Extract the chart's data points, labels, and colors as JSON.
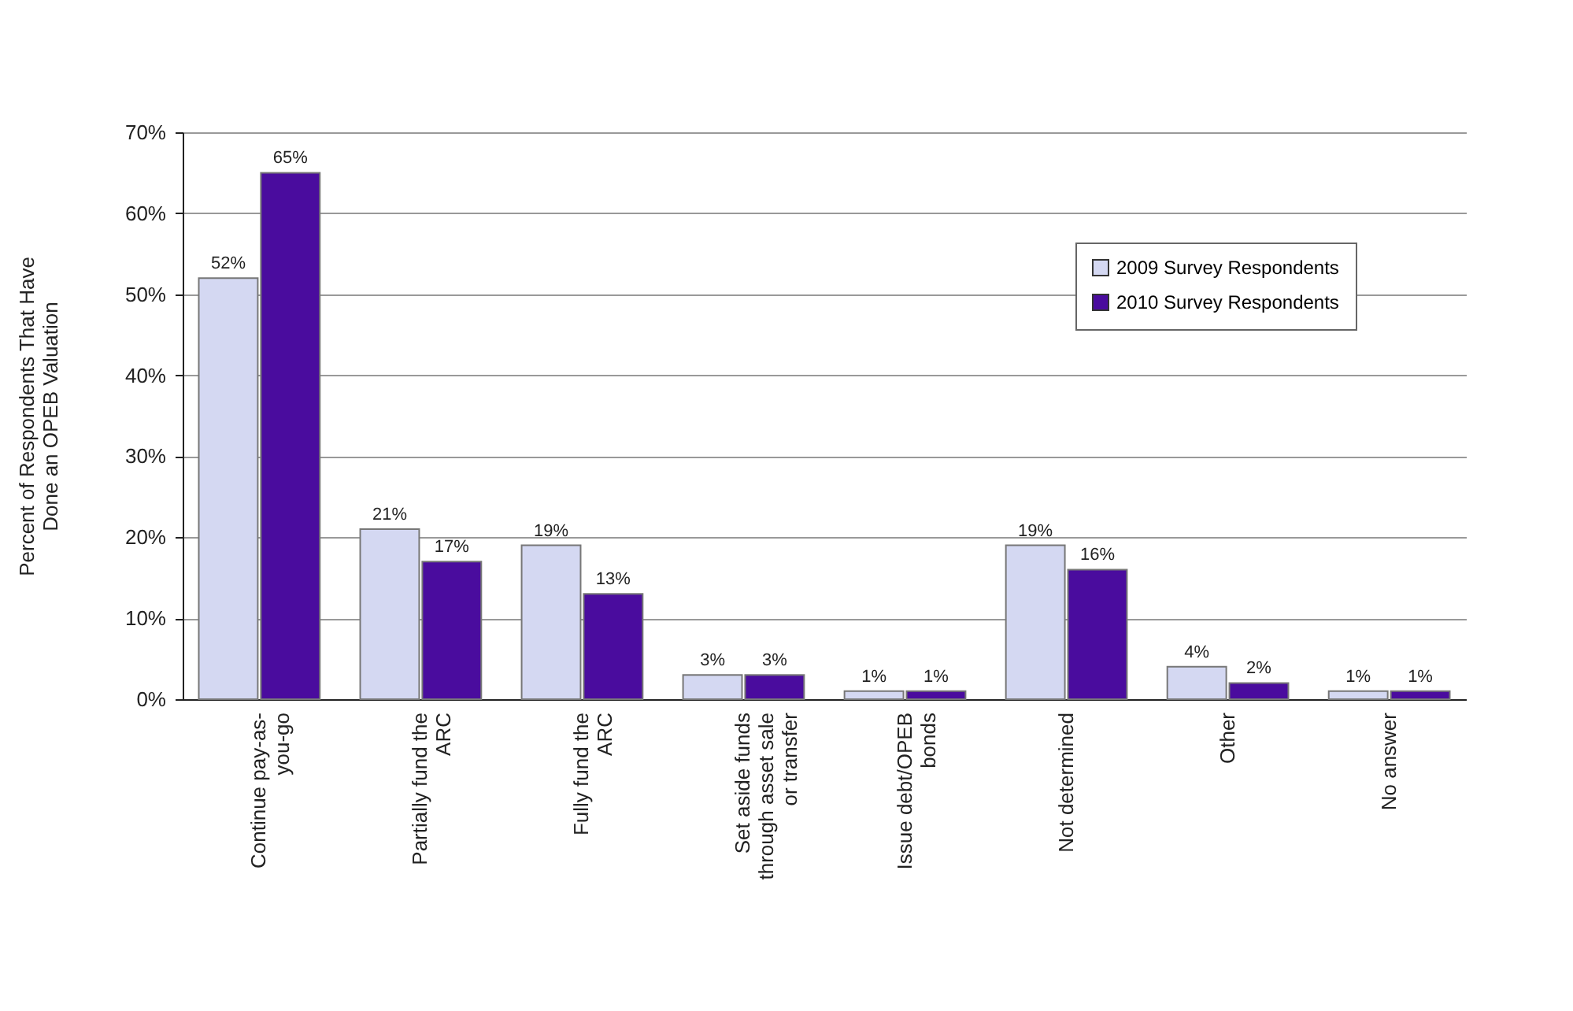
{
  "chart_data": {
    "type": "bar",
    "ylabel": "Percent of Respondents That Have\nDone an OPEB Valuation",
    "categories": [
      "Continue pay-as-\nyou-go",
      "Partially fund the\nARC",
      "Fully fund the\nARC",
      "Set aside funds\nthrough asset sale\nor transfer",
      "Issue debt/OPEB\nbonds",
      "Not determined",
      "Other",
      "No answer"
    ],
    "series": [
      {
        "name": "2009 Survey Respondents",
        "color": "#d4d8f2",
        "values": [
          52,
          21,
          19,
          3,
          1,
          19,
          4,
          1
        ],
        "value_labels": [
          "52%",
          "21%",
          "19%",
          "3%",
          "1%",
          "19%",
          "4%",
          "1%"
        ]
      },
      {
        "name": "2010 Survey Respondents",
        "color": "#4a0c9e",
        "values": [
          65,
          17,
          13,
          3,
          1,
          16,
          2,
          1
        ],
        "value_labels": [
          "65%",
          "17%",
          "13%",
          "3%",
          "1%",
          "16%",
          "2%",
          "1%"
        ]
      }
    ],
    "ylim": [
      0,
      70
    ],
    "yticks": [
      {
        "value": 0,
        "label": "0%"
      },
      {
        "value": 10,
        "label": "10%"
      },
      {
        "value": 20,
        "label": "20%"
      },
      {
        "value": 30,
        "label": "30%"
      },
      {
        "value": 40,
        "label": "40%"
      },
      {
        "value": 50,
        "label": "50%"
      },
      {
        "value": 60,
        "label": "60%"
      },
      {
        "value": 70,
        "label": "70%"
      }
    ],
    "grid": "y",
    "legend": "top right"
  }
}
